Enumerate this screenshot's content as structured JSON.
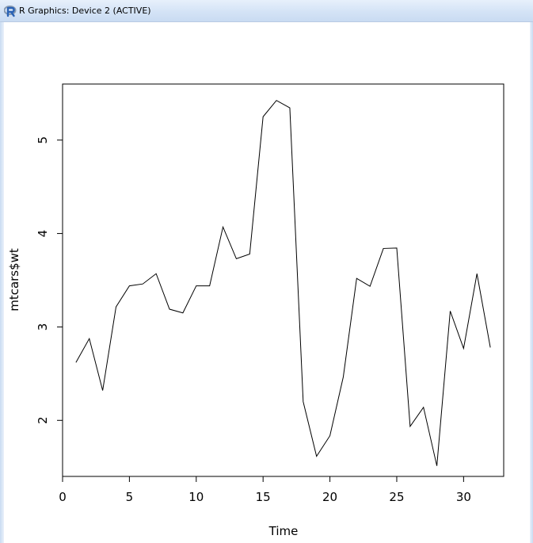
{
  "window": {
    "title": "R Graphics: Device 2 (ACTIVE)",
    "app_icon": "r-logo-icon"
  },
  "chart_data": {
    "type": "line",
    "xlabel": "Time",
    "ylabel": "mtcars$wt",
    "x": [
      1,
      2,
      3,
      4,
      5,
      6,
      7,
      8,
      9,
      10,
      11,
      12,
      13,
      14,
      15,
      16,
      17,
      18,
      19,
      20,
      21,
      22,
      23,
      24,
      25,
      26,
      27,
      28,
      29,
      30,
      31,
      32
    ],
    "series": [
      {
        "values": [
          2.62,
          2.875,
          2.32,
          3.215,
          3.44,
          3.46,
          3.57,
          3.19,
          3.15,
          3.44,
          3.44,
          4.07,
          3.73,
          3.78,
          5.25,
          5.424,
          5.345,
          2.2,
          1.615,
          1.835,
          2.465,
          3.52,
          3.435,
          3.84,
          3.845,
          1.935,
          2.14,
          1.513,
          3.17,
          2.77,
          3.57,
          2.78
        ]
      }
    ],
    "xlim": [
      0,
      33
    ],
    "ylim": [
      1.4,
      5.6
    ],
    "x_ticks": [
      0,
      5,
      10,
      15,
      20,
      25,
      30
    ],
    "y_ticks": [
      2,
      3,
      4,
      5
    ],
    "grid": false,
    "legend": "none",
    "line_color": "#000000"
  }
}
